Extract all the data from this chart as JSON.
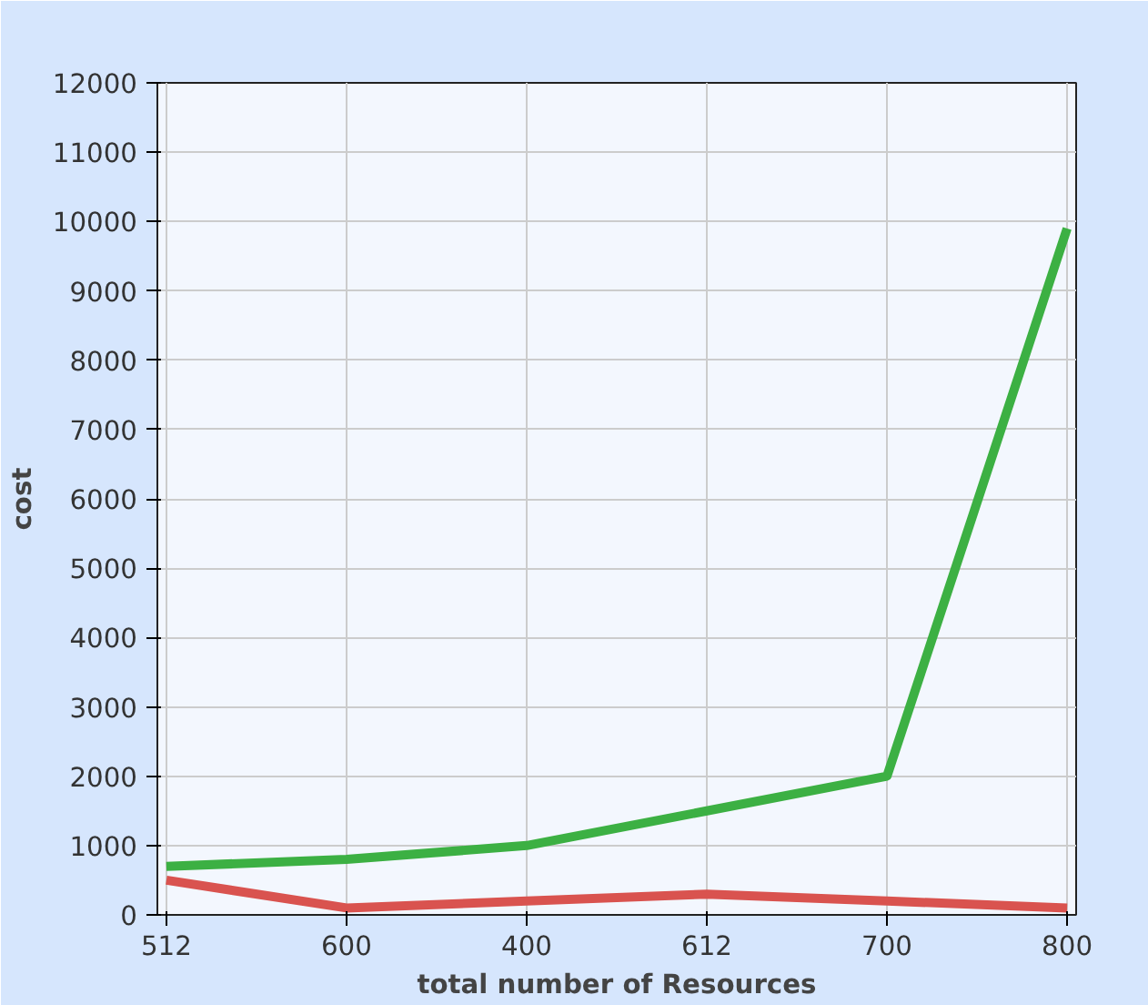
{
  "chart_data": {
    "type": "line",
    "xlabel": "total number of Resources",
    "ylabel": "cost",
    "categories": [
      "512",
      "600",
      "400",
      "612",
      "700",
      "800"
    ],
    "series": [
      {
        "color": "#3cb043",
        "values": [
          700,
          800,
          1000,
          1500,
          2000,
          9900
        ]
      },
      {
        "color": "#d9534f",
        "values": [
          500,
          100,
          200,
          300,
          200,
          100
        ]
      }
    ],
    "ylim": [
      0,
      12000
    ],
    "yticks": [
      0,
      1000,
      2000,
      3000,
      4000,
      5000,
      6000,
      7000,
      8000,
      9000,
      10000,
      11000,
      12000
    ],
    "grid": true,
    "marker": "none",
    "line_style": "solid"
  }
}
